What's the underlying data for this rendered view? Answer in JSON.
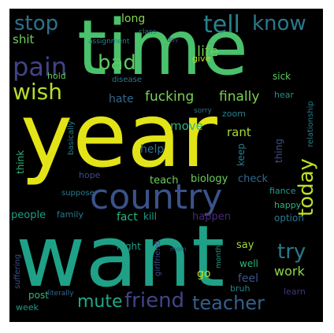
{
  "wordcloud": {
    "background": "#000000",
    "words": [
      {
        "text": "year",
        "color": "#e3e418"
      },
      {
        "text": "want",
        "color": "#1fa187"
      },
      {
        "text": "time",
        "color": "#4ac16d"
      },
      {
        "text": "country",
        "color": "#3b528b"
      },
      {
        "text": "pain",
        "color": "#414487"
      },
      {
        "text": "tell",
        "color": "#26828e"
      },
      {
        "text": "know",
        "color": "#2a788e"
      },
      {
        "text": "stop",
        "color": "#2c728e"
      },
      {
        "text": "wish",
        "color": "#b5de2b"
      },
      {
        "text": "bad",
        "color": "#5ec962"
      },
      {
        "text": "friend",
        "color": "#414487"
      },
      {
        "text": "teacher",
        "color": "#355f8d"
      },
      {
        "text": "mute",
        "color": "#22a884"
      },
      {
        "text": "today",
        "color": "#bddf26"
      },
      {
        "text": "try",
        "color": "#2a788e"
      },
      {
        "text": "life",
        "color": "#6ece58"
      },
      {
        "text": "fucking",
        "color": "#7ad151"
      },
      {
        "text": "finally",
        "color": "#7ad151"
      },
      {
        "text": "shit",
        "color": "#6ece58"
      },
      {
        "text": "long",
        "color": "#84d44b"
      },
      {
        "text": "hate",
        "color": "#31688e"
      },
      {
        "text": "move",
        "color": "#2db27d"
      },
      {
        "text": "rant",
        "color": "#a5db36"
      },
      {
        "text": "help",
        "color": "#2c728e"
      },
      {
        "text": "teach",
        "color": "#6ece58"
      },
      {
        "text": "biology",
        "color": "#6ece58"
      },
      {
        "text": "check",
        "color": "#31688e"
      },
      {
        "text": "people",
        "color": "#1f9e89"
      },
      {
        "text": "family",
        "color": "#2a788e"
      },
      {
        "text": "fact",
        "color": "#2db27d"
      },
      {
        "text": "kill",
        "color": "#1f9e89"
      },
      {
        "text": "happen",
        "color": "#482878"
      },
      {
        "text": "option",
        "color": "#2a788e"
      },
      {
        "text": "work",
        "color": "#8fd744"
      },
      {
        "text": "feel",
        "color": "#3b528b"
      },
      {
        "text": "well",
        "color": "#2db27d"
      },
      {
        "text": "go",
        "color": "#c2df23"
      },
      {
        "text": "say",
        "color": "#9fda3a"
      },
      {
        "text": "bruh",
        "color": "#26828e"
      },
      {
        "text": "learn",
        "color": "#46337f"
      },
      {
        "text": "post",
        "color": "#35b779"
      },
      {
        "text": "week",
        "color": "#1f9e89"
      },
      {
        "text": "night",
        "color": "#1fa187"
      },
      {
        "text": "hope",
        "color": "#3e4a89"
      },
      {
        "text": "think",
        "color": "#2db27d"
      },
      {
        "text": "hold",
        "color": "#5ec962"
      },
      {
        "text": "give",
        "color": "#bddf26"
      },
      {
        "text": "disease",
        "color": "#2a788e"
      },
      {
        "text": "assignment",
        "color": "#26828e"
      },
      {
        "text": "class",
        "color": "#2a788e"
      },
      {
        "text": "sick",
        "color": "#5ec962"
      },
      {
        "text": "hear",
        "color": "#21918c"
      },
      {
        "text": "zoom",
        "color": "#26828e"
      },
      {
        "text": "keep",
        "color": "#287c8e"
      },
      {
        "text": "thing",
        "color": "#3b528b"
      },
      {
        "text": "fiance",
        "color": "#1f9e89"
      },
      {
        "text": "happy",
        "color": "#2db27d"
      },
      {
        "text": "suppose",
        "color": "#2a788e"
      },
      {
        "text": "basically",
        "color": "#26828e"
      },
      {
        "text": "relationship",
        "color": "#287c8e"
      },
      {
        "text": "suffering",
        "color": "#3b528b"
      },
      {
        "text": "girlfriend",
        "color": "#3e4a89"
      },
      {
        "text": "literally",
        "color": "#31688e"
      },
      {
        "text": "month",
        "color": "#1f9e89"
      },
      {
        "text": "sorry",
        "color": "#2a788e"
      },
      {
        "text": "day",
        "color": "#433e85"
      },
      {
        "text": "mom",
        "color": "#3e4a89"
      }
    ]
  }
}
